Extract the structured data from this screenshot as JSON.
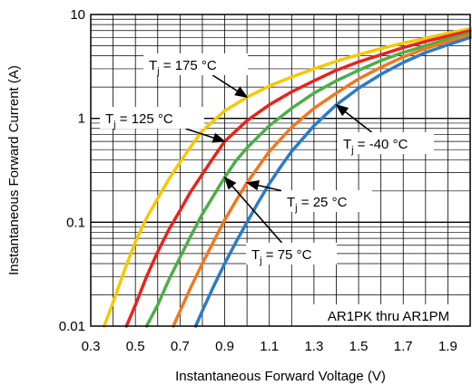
{
  "chart_data": {
    "type": "line",
    "title": "",
    "xlabel": "Instantaneous Forward Voltage (V)",
    "ylabel": "Instantaneous Forward Current (A)",
    "xlim": [
      0.3,
      2.0
    ],
    "ylim": [
      0.01,
      10
    ],
    "yscale": "log",
    "x_ticks": [
      "0.3",
      "0.5",
      "0.7",
      "0.9",
      "1.1",
      "1.3",
      "1.5",
      "1.7",
      "1.9"
    ],
    "y_ticks": [
      "0.01",
      "0.1",
      "1",
      "10"
    ],
    "grid": true,
    "annotation": "AR1PK thru AR1PM",
    "series": [
      {
        "label": "Tj = 175 °C",
        "tj": "175 °C",
        "color": "#F5C800",
        "x": [
          0.36,
          0.4,
          0.45,
          0.5,
          0.55,
          0.6,
          0.65,
          0.7,
          0.75,
          0.8,
          0.9,
          1.0,
          1.1,
          1.2,
          1.3,
          1.4,
          1.5,
          1.6,
          1.7,
          1.8,
          1.9,
          2.0
        ],
        "y": [
          0.01,
          0.017,
          0.034,
          0.065,
          0.11,
          0.17,
          0.26,
          0.38,
          0.54,
          0.76,
          1.18,
          1.6,
          2.05,
          2.5,
          3.0,
          3.55,
          4.1,
          4.7,
          5.3,
          5.9,
          6.6,
          7.3
        ]
      },
      {
        "label": "Tj = 125 °C",
        "tj": "125 °C",
        "color": "#E8231C",
        "x": [
          0.46,
          0.5,
          0.55,
          0.6,
          0.65,
          0.7,
          0.75,
          0.8,
          0.85,
          0.9,
          1.0,
          1.1,
          1.2,
          1.3,
          1.4,
          1.5,
          1.6,
          1.7,
          1.8,
          1.9,
          2.0
        ],
        "y": [
          0.01,
          0.016,
          0.03,
          0.052,
          0.085,
          0.13,
          0.2,
          0.29,
          0.42,
          0.6,
          0.95,
          1.35,
          1.8,
          2.3,
          2.9,
          3.5,
          4.1,
          4.8,
          5.5,
          6.2,
          7.0
        ]
      },
      {
        "label": "Tj = 75 °C",
        "tj": "75 °C",
        "color": "#4CAE47",
        "x": [
          0.55,
          0.6,
          0.65,
          0.7,
          0.75,
          0.8,
          0.85,
          0.9,
          0.95,
          1.0,
          1.1,
          1.2,
          1.3,
          1.4,
          1.5,
          1.6,
          1.7,
          1.8,
          1.9,
          2.0
        ],
        "y": [
          0.01,
          0.016,
          0.028,
          0.046,
          0.075,
          0.12,
          0.18,
          0.27,
          0.39,
          0.52,
          0.85,
          1.25,
          1.75,
          2.3,
          2.9,
          3.6,
          4.3,
          5.0,
          5.8,
          6.6
        ]
      },
      {
        "label": "Tj = 25 °C",
        "tj": "25 °C",
        "color": "#F07820",
        "x": [
          0.67,
          0.7,
          0.75,
          0.8,
          0.85,
          0.9,
          0.95,
          1.0,
          1.05,
          1.1,
          1.2,
          1.3,
          1.4,
          1.5,
          1.6,
          1.7,
          1.8,
          1.9,
          2.0
        ],
        "y": [
          0.01,
          0.014,
          0.024,
          0.04,
          0.065,
          0.105,
          0.16,
          0.24,
          0.34,
          0.48,
          0.82,
          1.25,
          1.75,
          2.4,
          3.1,
          3.9,
          4.7,
          5.5,
          6.3
        ]
      },
      {
        "label": "Tj = -40 °C",
        "tj": "-40 °C",
        "color": "#2B7BC8",
        "x": [
          0.77,
          0.8,
          0.85,
          0.9,
          0.95,
          1.0,
          1.05,
          1.1,
          1.15,
          1.2,
          1.3,
          1.4,
          1.5,
          1.6,
          1.7,
          1.8,
          1.9,
          2.0
        ],
        "y": [
          0.01,
          0.014,
          0.024,
          0.04,
          0.064,
          0.1,
          0.155,
          0.235,
          0.34,
          0.48,
          0.85,
          1.35,
          1.95,
          2.65,
          3.45,
          4.3,
          5.1,
          6.0
        ]
      }
    ]
  }
}
